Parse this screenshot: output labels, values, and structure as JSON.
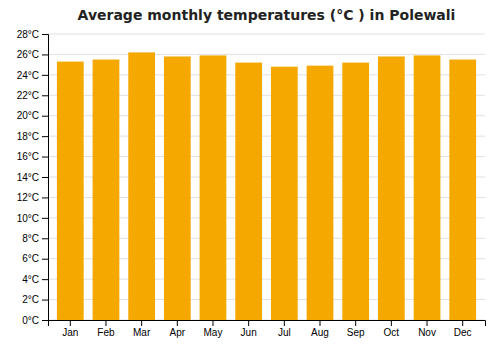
{
  "chart_data": {
    "type": "bar",
    "title": "Average monthly temperatures (°C ) in Polewali",
    "categories": [
      "Jan",
      "Feb",
      "Mar",
      "Apr",
      "May",
      "Jun",
      "Jul",
      "Aug",
      "Sep",
      "Oct",
      "Nov",
      "Dec"
    ],
    "values": [
      25.3,
      25.5,
      26.2,
      25.8,
      25.9,
      25.2,
      24.8,
      24.9,
      25.2,
      25.8,
      25.9,
      25.5
    ],
    "color": "#F5A800",
    "ylim": [
      0,
      28
    ],
    "yticks": [
      {
        "value": 0,
        "label": "0°C"
      },
      {
        "value": 2,
        "label": "2°C"
      },
      {
        "value": 4,
        "label": "4°C"
      },
      {
        "value": 6,
        "label": "6°C"
      },
      {
        "value": 8,
        "label": "8°C"
      },
      {
        "value": 10,
        "label": "10°C"
      },
      {
        "value": 12,
        "label": "12°C"
      },
      {
        "value": 14,
        "label": "14°C"
      },
      {
        "value": 16,
        "label": "16°C"
      },
      {
        "value": 18,
        "label": "18°C"
      },
      {
        "value": 20,
        "label": "20°C"
      },
      {
        "value": 22,
        "label": "22°C"
      },
      {
        "value": 24,
        "label": "24°C"
      },
      {
        "value": 26,
        "label": "26°C"
      },
      {
        "value": 28,
        "label": "28°C"
      }
    ],
    "grid": true
  }
}
